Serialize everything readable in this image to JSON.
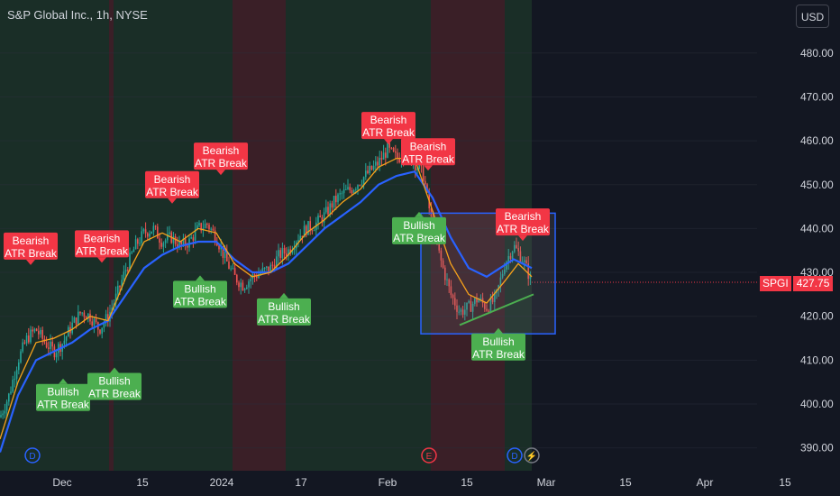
{
  "header": {
    "title": "S&P Global Inc., 1h, NYSE",
    "currency": "USD"
  },
  "price_tag": {
    "symbol": "SPGI",
    "value": "427.75",
    "price": 427.75
  },
  "colors": {
    "background": "#131722",
    "bearish": "#f23645",
    "bullish": "#4caf50",
    "ma_fast": "#f7a21b",
    "ma_slow": "#2962ff",
    "bull_zone": "#1a2e27",
    "bear_zone": "#3a1f27"
  },
  "chart_data": {
    "type": "candlestick",
    "ylim": [
      385,
      488
    ],
    "y_ticks": [
      390,
      400,
      410,
      420,
      430,
      440,
      450,
      460,
      470,
      480
    ],
    "y_tick_labels": [
      "390.00",
      "400.00",
      "410.00",
      "420.00",
      "430.00",
      "440.00",
      "450.00",
      "460.00",
      "470.00",
      "480.00"
    ],
    "x_ticks": [
      "Dec",
      "15",
      "2024",
      "17",
      "Feb",
      "15",
      "Mar",
      "15",
      "Apr",
      "15"
    ],
    "price_path": [
      [
        0,
        397
      ],
      [
        10,
        402
      ],
      [
        20,
        410
      ],
      [
        30,
        415
      ],
      [
        40,
        417
      ],
      [
        50,
        414
      ],
      [
        60,
        412
      ],
      [
        70,
        414
      ],
      [
        80,
        418
      ],
      [
        90,
        421
      ],
      [
        100,
        420
      ],
      [
        110,
        417
      ],
      [
        120,
        420
      ],
      [
        130,
        425
      ],
      [
        140,
        431
      ],
      [
        150,
        436
      ],
      [
        160,
        439
      ],
      [
        170,
        440
      ],
      [
        180,
        437
      ],
      [
        190,
        438
      ],
      [
        200,
        436
      ],
      [
        210,
        437
      ],
      [
        220,
        440
      ],
      [
        230,
        441
      ],
      [
        240,
        438
      ],
      [
        250,
        433
      ],
      [
        260,
        429
      ],
      [
        270,
        427
      ],
      [
        280,
        429
      ],
      [
        290,
        430
      ],
      [
        300,
        431
      ],
      [
        310,
        434
      ],
      [
        320,
        435
      ],
      [
        330,
        438
      ],
      [
        340,
        440
      ],
      [
        350,
        441
      ],
      [
        360,
        443
      ],
      [
        370,
        446
      ],
      [
        380,
        448
      ],
      [
        390,
        449
      ],
      [
        400,
        451
      ],
      [
        410,
        453
      ],
      [
        420,
        455
      ],
      [
        430,
        458
      ],
      [
        440,
        456
      ],
      [
        450,
        457
      ],
      [
        460,
        455
      ],
      [
        470,
        452
      ],
      [
        480,
        440
      ],
      [
        490,
        432
      ],
      [
        500,
        425
      ],
      [
        510,
        421
      ],
      [
        520,
        422
      ],
      [
        530,
        424
      ],
      [
        540,
        422
      ],
      [
        550,
        424
      ],
      [
        560,
        432
      ],
      [
        570,
        436
      ],
      [
        580,
        433
      ],
      [
        590,
        427.75
      ]
    ],
    "ma_fast_path": [
      [
        0,
        392
      ],
      [
        20,
        405
      ],
      [
        40,
        414
      ],
      [
        60,
        415
      ],
      [
        80,
        417
      ],
      [
        100,
        420
      ],
      [
        120,
        419
      ],
      [
        140,
        429
      ],
      [
        160,
        437
      ],
      [
        180,
        439
      ],
      [
        200,
        437
      ],
      [
        220,
        440
      ],
      [
        240,
        439
      ],
      [
        260,
        432
      ],
      [
        280,
        429
      ],
      [
        300,
        430
      ],
      [
        320,
        434
      ],
      [
        340,
        439
      ],
      [
        360,
        442
      ],
      [
        380,
        446
      ],
      [
        400,
        449
      ],
      [
        420,
        454
      ],
      [
        440,
        456
      ],
      [
        460,
        456
      ],
      [
        480,
        444
      ],
      [
        500,
        432
      ],
      [
        520,
        425
      ],
      [
        540,
        423
      ],
      [
        560,
        428
      ],
      [
        575,
        432
      ],
      [
        590,
        429
      ]
    ],
    "ma_slow_path": [
      [
        0,
        389
      ],
      [
        20,
        402
      ],
      [
        40,
        410
      ],
      [
        60,
        412
      ],
      [
        80,
        414
      ],
      [
        100,
        417
      ],
      [
        120,
        419
      ],
      [
        140,
        425
      ],
      [
        160,
        431
      ],
      [
        180,
        434
      ],
      [
        200,
        436
      ],
      [
        220,
        437
      ],
      [
        240,
        437
      ],
      [
        260,
        433
      ],
      [
        280,
        430
      ],
      [
        300,
        430
      ],
      [
        320,
        432
      ],
      [
        340,
        436
      ],
      [
        360,
        440
      ],
      [
        380,
        443
      ],
      [
        400,
        446
      ],
      [
        420,
        450
      ],
      [
        440,
        452
      ],
      [
        460,
        453
      ],
      [
        480,
        447
      ],
      [
        500,
        438
      ],
      [
        520,
        431
      ],
      [
        540,
        429
      ],
      [
        555,
        431
      ],
      [
        570,
        433
      ],
      [
        590,
        431
      ]
    ],
    "zones": [
      {
        "x0": 0,
        "x1": 121,
        "kind": "bull"
      },
      {
        "x0": 121,
        "x1": 126,
        "kind": "bear"
      },
      {
        "x0": 126,
        "x1": 258,
        "kind": "bull"
      },
      {
        "x0": 258,
        "x1": 317,
        "kind": "bear"
      },
      {
        "x0": 317,
        "x1": 478,
        "kind": "bull"
      },
      {
        "x0": 478,
        "x1": 560,
        "kind": "bear"
      },
      {
        "x0": 560,
        "x1": 590,
        "kind": "bull"
      }
    ],
    "signals": [
      {
        "type": "bearish",
        "line1": "Bearish",
        "line2": "ATR Break",
        "x": 34,
        "box_price": 436.0,
        "dir": "down",
        "anchor_price": 429.0
      },
      {
        "type": "bullish",
        "line1": "Bullish",
        "line2": "ATR Break",
        "x": 70,
        "box_price": 401.5,
        "dir": "up",
        "anchor_price": 407.5
      },
      {
        "type": "bearish",
        "line1": "Bearish",
        "line2": "ATR Break",
        "x": 113,
        "box_price": 436.5,
        "dir": "down",
        "anchor_price": 430.0
      },
      {
        "type": "bullish",
        "line1": "Bullish",
        "line2": "ATR Break",
        "x": 127,
        "box_price": 404.0,
        "dir": "up",
        "anchor_price": 410.0
      },
      {
        "type": "bearish",
        "line1": "Bearish",
        "line2": "ATR Break",
        "x": 191,
        "box_price": 450.0,
        "dir": "down",
        "anchor_price": 443.5
      },
      {
        "type": "bearish",
        "line1": "Bearish",
        "line2": "ATR Break",
        "x": 245,
        "box_price": 456.5,
        "dir": "down",
        "anchor_price": 450.0
      },
      {
        "type": "bullish",
        "line1": "Bullish",
        "line2": "ATR Break",
        "x": 222,
        "box_price": 425.0,
        "dir": "up",
        "anchor_price": 431.0
      },
      {
        "type": "bullish",
        "line1": "Bullish",
        "line2": "ATR Break",
        "x": 315,
        "box_price": 421.0,
        "dir": "up",
        "anchor_price": 427.0
      },
      {
        "type": "bearish",
        "line1": "Bearish",
        "line2": "ATR Break",
        "x": 431,
        "box_price": 463.5,
        "dir": "down",
        "anchor_price": 457.0
      },
      {
        "type": "bearish",
        "line1": "Bearish",
        "line2": "ATR Break",
        "x": 475,
        "box_price": 457.5,
        "dir": "down",
        "anchor_price": 451.0
      },
      {
        "type": "bullish",
        "line1": "Bullish",
        "line2": "ATR Break",
        "x": 465,
        "box_price": 439.5,
        "dir": "up",
        "anchor_price": 445.5
      },
      {
        "type": "bearish",
        "line1": "Bearish",
        "line2": "ATR Break",
        "x": 580,
        "box_price": 441.5,
        "dir": "down",
        "anchor_price": 435.0
      },
      {
        "type": "bullish",
        "line1": "Bullish",
        "line2": "ATR Break",
        "x": 553,
        "box_price": 413.0,
        "dir": "up",
        "anchor_price": 419.0
      }
    ],
    "range_box": {
      "x0": 467,
      "x1": 616,
      "top_price": 443.5,
      "bottom_price": 416.0
    },
    "trendline": [
      [
        510,
        418
      ],
      [
        592,
        425
      ]
    ],
    "events": [
      {
        "label": "D",
        "x": 36,
        "color": "#2962ff"
      },
      {
        "label": "E",
        "x": 476,
        "color": "#f23645"
      },
      {
        "label": "D",
        "x": 571,
        "color": "#2962ff"
      },
      {
        "label": "⚡",
        "x": 590,
        "color": "#787b86"
      }
    ]
  }
}
